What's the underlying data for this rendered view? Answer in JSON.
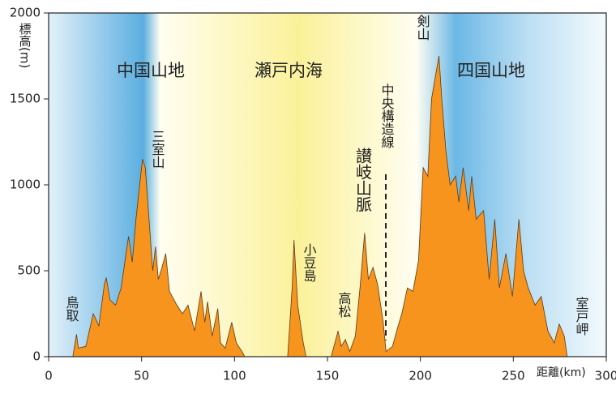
{
  "chart_data": {
    "type": "area",
    "ylabel": "標高(m)",
    "xlabel": "距離(km)",
    "xlim": [
      0,
      300
    ],
    "xticks": [
      0,
      50,
      100,
      150,
      200,
      250,
      300
    ],
    "ylim": [
      0,
      2000
    ],
    "yticks": [
      0,
      500,
      1000,
      1500,
      2000
    ],
    "x": [
      13,
      15,
      16,
      20,
      24,
      27,
      30,
      31,
      33,
      36,
      39,
      43,
      45,
      47,
      49,
      50.5,
      52,
      54,
      56,
      57.5,
      59,
      61,
      63,
      65,
      69,
      72,
      75,
      78.5,
      82,
      84,
      85.5,
      88,
      91,
      92.5,
      95,
      98.5,
      101,
      104,
      105.5,
      128.6,
      131,
      132,
      134,
      137,
      138.5,
      152,
      154,
      155.7,
      157.4,
      159.6,
      162,
      165,
      167.5,
      170,
      172,
      174.5,
      177,
      180,
      181.5,
      185,
      187.5,
      190,
      193,
      196,
      199,
      201.5,
      204,
      206,
      207.6,
      210,
      211.5,
      213.7,
      216,
      219,
      220.7,
      223,
      226,
      227.6,
      230,
      234,
      237,
      240,
      242.5,
      246,
      249.5,
      253,
      255.5,
      258,
      261.7,
      265,
      268.6,
      272,
      274.7,
      277.4,
      279
    ],
    "series": [
      {
        "color": "#f7941d",
        "values": [
          0,
          130,
          50,
          60,
          250,
          180,
          420,
          460,
          330,
          300,
          400,
          700,
          550,
          800,
          1000,
          1150,
          1100,
          800,
          500,
          640,
          450,
          520,
          600,
          380,
          300,
          250,
          300,
          150,
          380,
          200,
          320,
          120,
          280,
          80,
          50,
          200,
          80,
          30,
          0,
          0,
          400,
          680,
          300,
          80,
          0,
          0,
          80,
          150,
          60,
          100,
          30,
          120,
          400,
          720,
          450,
          520,
          420,
          200,
          30,
          60,
          160,
          250,
          400,
          380,
          560,
          1100,
          1050,
          1500,
          1600,
          1750,
          1500,
          1200,
          1000,
          1050,
          900,
          1100,
          850,
          1050,
          800,
          850,
          450,
          800,
          400,
          600,
          350,
          800,
          500,
          400,
          300,
          350,
          150,
          80,
          190,
          120,
          0
        ]
      }
    ],
    "annotations": [
      {
        "text": "中国山地",
        "color": "#a3203c"
      },
      {
        "text": "瀬戸内海",
        "color": "#4b5bab"
      },
      {
        "text": "四国山地",
        "color": "#a3203c"
      },
      {
        "text": "鳥取",
        "color": "#222222"
      },
      {
        "text": "三室山",
        "color": "#222222"
      },
      {
        "text": "小豆島",
        "color": "#222222"
      },
      {
        "text": "高松",
        "color": "#222222"
      },
      {
        "text": "讃岐山脈",
        "color": "#a3203c"
      },
      {
        "text": "中央構造線",
        "color": "#222222"
      },
      {
        "text": "剣山",
        "color": "#222222"
      },
      {
        "text": "室戸岬",
        "color": "#222222"
      }
    ]
  }
}
